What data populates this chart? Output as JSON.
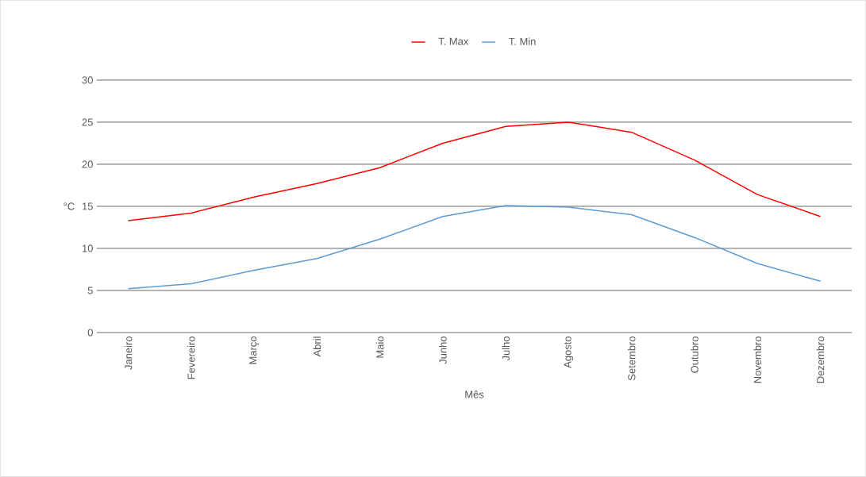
{
  "chart_data": {
    "type": "line",
    "xlabel": "Mês",
    "ylabel": "°C",
    "categories": [
      "Janeiro",
      "Fevereiro",
      "Março",
      "Abril",
      "Maio",
      "Junho",
      "Julho",
      "Agosto",
      "Setembro",
      "Outubro",
      "Novembro",
      "Dezembro"
    ],
    "series": [
      {
        "name": "T. Max",
        "color": "#ff0000",
        "values": [
          13.3,
          14.2,
          16.1,
          17.7,
          19.6,
          22.5,
          24.5,
          25.0,
          23.8,
          20.5,
          16.4,
          13.8
        ]
      },
      {
        "name": "T. Min",
        "color": "#5b9bd5",
        "values": [
          5.2,
          5.8,
          7.4,
          8.8,
          11.1,
          13.8,
          15.1,
          14.9,
          14.0,
          11.3,
          8.2,
          6.1
        ]
      }
    ],
    "ylim": [
      0,
      30
    ],
    "yticks": [
      0,
      5,
      10,
      15,
      20,
      25,
      30
    ],
    "grid": "y",
    "legend": "top",
    "marker": "none",
    "line_style": "solid"
  }
}
